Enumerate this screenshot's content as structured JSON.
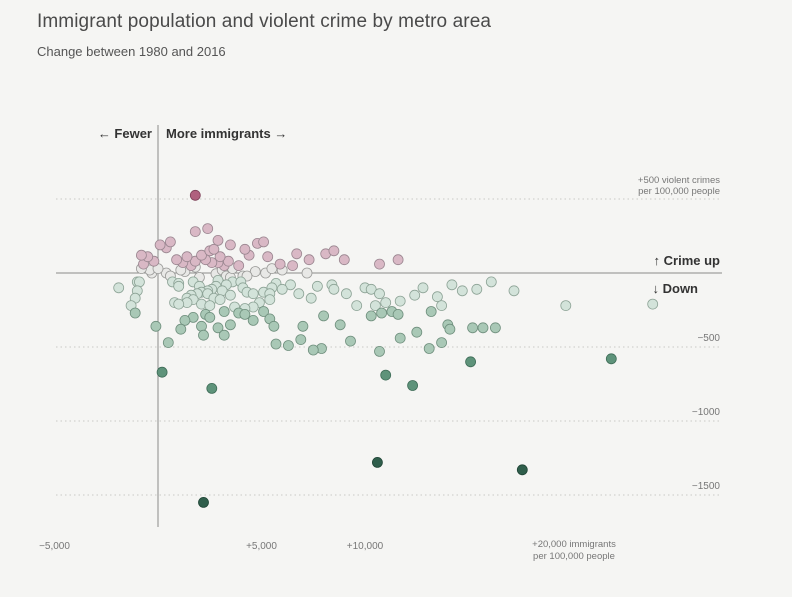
{
  "title": "Immigrant population and violent crime by metro area",
  "subtitle": "Change between 1980 and 2016",
  "labels": {
    "fewer": "← Fewer",
    "more": "More immigrants →",
    "crime_up": "↑ Crime up",
    "crime_down": "↓ Down",
    "y_top_1": "+500 violent crimes",
    "y_top_2": "per 100,000 people",
    "x_right_1": "+20,000 immigrants",
    "x_right_2": "per 100,000 people"
  },
  "chart_data": {
    "type": "scatter",
    "title": "Immigrant population and violent crime by metro area",
    "subtitle": "Change between 1980 and 2016",
    "xlim": [
      -5000,
      25000
    ],
    "ylim": [
      -1650,
      650
    ],
    "x_ticks": [
      {
        "value": -5000,
        "label": "−5,000"
      },
      {
        "value": 5000,
        "label": "+5,000"
      },
      {
        "value": 10000,
        "label": "+10,000"
      },
      {
        "value": 20000,
        "label": ""
      }
    ],
    "y_ticks": [
      {
        "value": 500,
        "label": ""
      },
      {
        "value": -500,
        "label": "−500"
      },
      {
        "value": -1000,
        "label": "−1000"
      },
      {
        "value": -1500,
        "label": "−1500"
      }
    ],
    "grid": "horizontal dotted",
    "colors": {
      "strong_up": "#b0607e",
      "up": "#d9b8c5",
      "near_zero": "#e8e8e6",
      "down_light": "#d3e3da",
      "down": "#a9c8b6",
      "strong_down": "#5e937a",
      "extreme_down": "#2f5e4b"
    },
    "points": [
      [
        1800,
        525
      ],
      [
        2900,
        220
      ],
      [
        2500,
        150
      ],
      [
        2900,
        70
      ],
      [
        1800,
        40
      ],
      [
        1300,
        10
      ],
      [
        2800,
        -5
      ],
      [
        3100,
        20
      ],
      [
        2000,
        -30
      ],
      [
        1700,
        -60
      ],
      [
        2000,
        -90
      ],
      [
        1600,
        -150
      ],
      [
        2400,
        -140
      ],
      [
        2600,
        -110
      ],
      [
        2900,
        -50
      ],
      [
        3300,
        -20
      ],
      [
        1000,
        -70
      ],
      [
        2100,
        -210
      ],
      [
        2500,
        -220
      ],
      [
        2300,
        -280
      ],
      [
        1700,
        -300
      ],
      [
        1300,
        -320
      ],
      [
        2500,
        -300
      ],
      [
        2100,
        -360
      ],
      [
        2900,
        -370
      ],
      [
        3500,
        -350
      ],
      [
        3200,
        -420
      ],
      [
        2200,
        -420
      ],
      [
        -1900,
        -100
      ],
      [
        -1000,
        -120
      ],
      [
        -1100,
        -170
      ],
      [
        -1300,
        -220
      ],
      [
        -1000,
        -60
      ],
      [
        -900,
        -60
      ],
      [
        -300,
        0
      ],
      [
        0,
        30
      ],
      [
        600,
        -20
      ],
      [
        700,
        -60
      ],
      [
        1000,
        -90
      ],
      [
        800,
        -200
      ],
      [
        1000,
        -210
      ],
      [
        1400,
        -200
      ],
      [
        1400,
        -170
      ],
      [
        1700,
        -180
      ],
      [
        1900,
        -140
      ],
      [
        2100,
        -130
      ],
      [
        2400,
        -120
      ],
      [
        2700,
        -170
      ],
      [
        3000,
        -180
      ],
      [
        3500,
        -150
      ],
      [
        3100,
        -120
      ],
      [
        2800,
        -90
      ],
      [
        3300,
        -80
      ],
      [
        3600,
        -60
      ],
      [
        3500,
        -30
      ],
      [
        4100,
        -20
      ],
      [
        4000,
        -60
      ],
      [
        4300,
        -20
      ],
      [
        4100,
        -100
      ],
      [
        4300,
        -130
      ],
      [
        4600,
        -140
      ],
      [
        5100,
        -130
      ],
      [
        5500,
        -100
      ],
      [
        5700,
        -70
      ],
      [
        5400,
        -140
      ],
      [
        6000,
        -110
      ],
      [
        6400,
        -80
      ],
      [
        6800,
        -140
      ],
      [
        7400,
        -170
      ],
      [
        7700,
        -90
      ],
      [
        8400,
        -80
      ],
      [
        8500,
        -110
      ],
      [
        9100,
        -140
      ],
      [
        9600,
        -220
      ],
      [
        10000,
        -100
      ],
      [
        10300,
        -110
      ],
      [
        10700,
        -140
      ],
      [
        11000,
        -200
      ],
      [
        11700,
        -190
      ],
      [
        12400,
        -150
      ],
      [
        12800,
        -100
      ],
      [
        11300,
        -260
      ],
      [
        10800,
        -270
      ],
      [
        10500,
        -220
      ],
      [
        10300,
        -290
      ],
      [
        11600,
        -280
      ],
      [
        13200,
        -260
      ],
      [
        13700,
        -220
      ],
      [
        13500,
        -160
      ],
      [
        14700,
        -120
      ],
      [
        14200,
        -80
      ],
      [
        15400,
        -110
      ],
      [
        16100,
        -60
      ],
      [
        17200,
        -120
      ],
      [
        19700,
        -220
      ],
      [
        23900,
        -210
      ],
      [
        14000,
        -350
      ],
      [
        14100,
        -380
      ],
      [
        12500,
        -400
      ],
      [
        11700,
        -440
      ],
      [
        13700,
        -470
      ],
      [
        13100,
        -510
      ],
      [
        15200,
        -370
      ],
      [
        15700,
        -370
      ],
      [
        16300,
        -370
      ],
      [
        8000,
        -290
      ],
      [
        7000,
        -360
      ],
      [
        8800,
        -350
      ],
      [
        7500,
        -520
      ],
      [
        7900,
        -510
      ],
      [
        9300,
        -460
      ],
      [
        6900,
        -450
      ],
      [
        6300,
        -490
      ],
      [
        5700,
        -480
      ],
      [
        5600,
        -360
      ],
      [
        5400,
        -310
      ],
      [
        5100,
        -260
      ],
      [
        4600,
        -320
      ],
      [
        4200,
        -240
      ],
      [
        3200,
        -260
      ],
      [
        3700,
        -230
      ],
      [
        3900,
        -270
      ],
      [
        4200,
        -280
      ],
      [
        4600,
        -230
      ],
      [
        4900,
        -200
      ],
      [
        5400,
        -180
      ],
      [
        1100,
        -380
      ],
      [
        500,
        -470
      ],
      [
        -100,
        -360
      ],
      [
        -1100,
        -270
      ],
      [
        10700,
        -530
      ],
      [
        12300,
        -760
      ],
      [
        11000,
        -690
      ],
      [
        15100,
        -600
      ],
      [
        21900,
        -580
      ],
      [
        200,
        -670
      ],
      [
        2600,
        -780
      ],
      [
        10600,
        -1280
      ],
      [
        17600,
        -1330
      ],
      [
        2200,
        -1550
      ],
      [
        -500,
        110
      ],
      [
        -800,
        120
      ],
      [
        -700,
        60
      ],
      [
        -200,
        80
      ],
      [
        100,
        190
      ],
      [
        400,
        170
      ],
      [
        600,
        210
      ],
      [
        900,
        90
      ],
      [
        1200,
        70
      ],
      [
        1400,
        110
      ],
      [
        1600,
        50
      ],
      [
        1800,
        80
      ],
      [
        2100,
        120
      ],
      [
        2300,
        90
      ],
      [
        2600,
        70
      ],
      [
        3000,
        110
      ],
      [
        3200,
        50
      ],
      [
        3400,
        80
      ],
      [
        3600,
        30
      ],
      [
        3900,
        50
      ],
      [
        4200,
        160
      ],
      [
        4400,
        120
      ],
      [
        5300,
        110
      ],
      [
        5900,
        60
      ],
      [
        6700,
        130
      ],
      [
        7300,
        90
      ],
      [
        8100,
        130
      ],
      [
        8500,
        150
      ],
      [
        9000,
        90
      ],
      [
        10700,
        60
      ],
      [
        11600,
        90
      ],
      [
        4800,
        200
      ],
      [
        5100,
        210
      ],
      [
        1800,
        280
      ],
      [
        2400,
        300
      ],
      [
        2700,
        160
      ],
      [
        3500,
        190
      ],
      [
        -800,
        30
      ],
      [
        -400,
        20
      ],
      [
        400,
        0
      ],
      [
        1100,
        20
      ],
      [
        4700,
        10
      ],
      [
        5200,
        0
      ],
      [
        5500,
        30
      ],
      [
        6000,
        20
      ],
      [
        6500,
        50
      ],
      [
        7200,
        0
      ]
    ]
  }
}
